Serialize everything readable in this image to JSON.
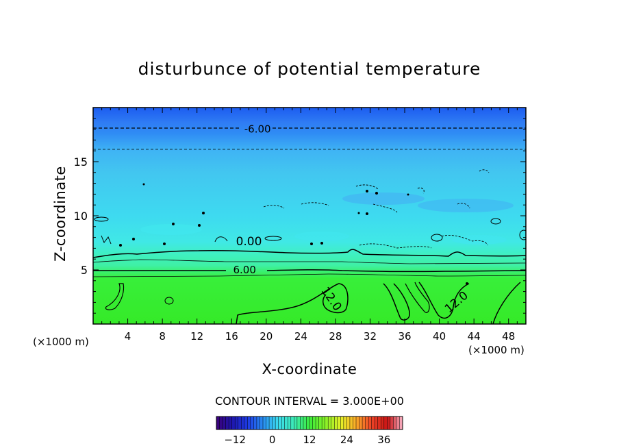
{
  "chart_data": {
    "type": "heatmap",
    "title": "disturbunce of potential temperature",
    "xlabel": "X-coordinate",
    "ylabel": "Z-coordinate",
    "x_unit_label": "(×1000 m)",
    "xlim": [
      0,
      50
    ],
    "ylim": [
      0,
      20
    ],
    "x_ticks": [
      4,
      8,
      12,
      16,
      20,
      24,
      28,
      32,
      36,
      40,
      44,
      48
    ],
    "y_ticks": [
      5,
      10,
      15
    ],
    "contour_interval_text": "CONTOUR INTERVAL = 3.000E+00",
    "contour_labels": [
      {
        "text": "-6.00",
        "x": 19,
        "y": 18.0
      },
      {
        "text": "0.00",
        "x": 18,
        "y": 7.6
      },
      {
        "text": "6.00",
        "x": 17.5,
        "y": 5.0
      },
      {
        "text": "12.0",
        "x": 27.5,
        "y": 2.3
      },
      {
        "text": "12.0",
        "x": 42,
        "y": 2.0
      }
    ],
    "field_bands": [
      {
        "z_min": 18,
        "z_max": 20,
        "value": -9
      },
      {
        "z_min": 16,
        "z_max": 18,
        "value": -6
      },
      {
        "z_min": 12,
        "z_max": 16,
        "value": -3
      },
      {
        "z_min": 6.2,
        "z_max": 12,
        "value": 0
      },
      {
        "z_min": 4.2,
        "z_max": 6.2,
        "value": 6
      },
      {
        "z_min": 0,
        "z_max": 4.2,
        "value": 12
      }
    ],
    "colorbar": {
      "range": [
        -18,
        42
      ],
      "ticks": [
        -12,
        0,
        12,
        24,
        36
      ]
    }
  }
}
